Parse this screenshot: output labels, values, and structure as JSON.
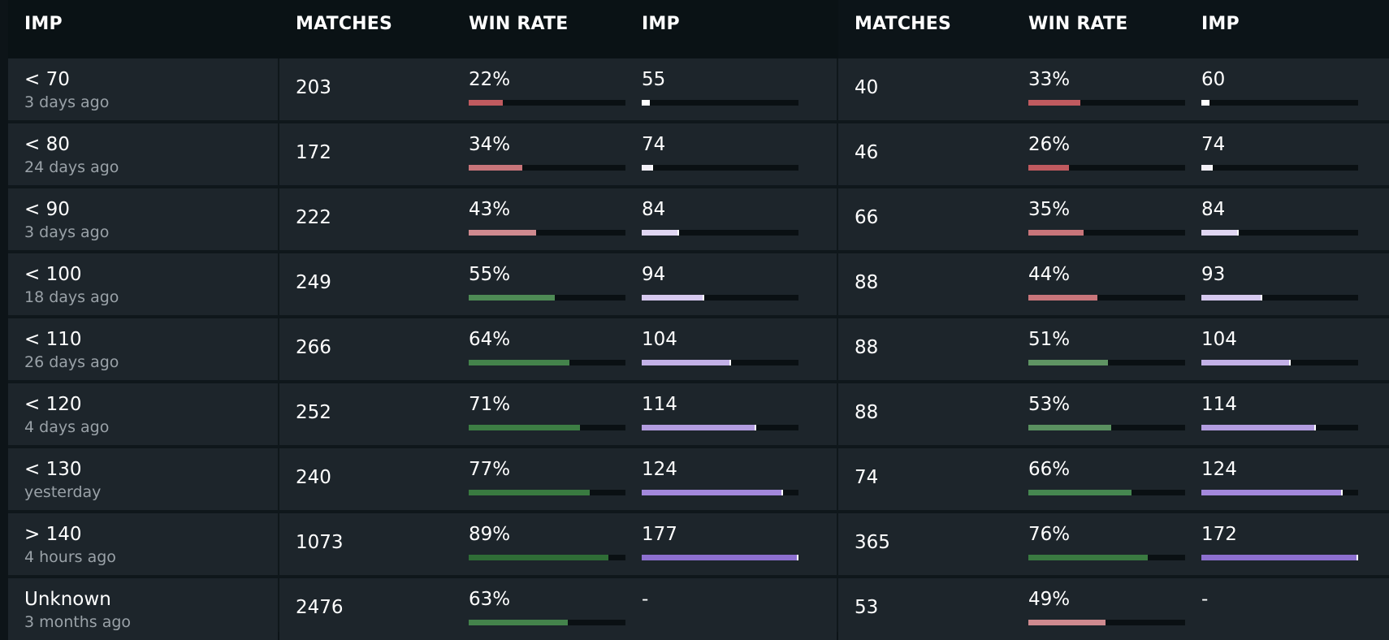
{
  "header": {
    "col1": "IMP",
    "col2": "MATCHES",
    "col3": "WIN RATE",
    "col4": "IMP",
    "col5": "MATCHES",
    "col6": "WIN RATE",
    "col7": "IMP"
  },
  "colors": {
    "win_low": "#c05a5f",
    "win_mid_low": "#c8757a",
    "win_mid": "#cf8a8f",
    "win_high": "#3f7d45",
    "win_high_alt": "#5a8c5d",
    "imp_lightest": "#e8e8f2",
    "imp_light": "#d9cdee",
    "imp_mid": "#c4b2e6",
    "imp_strong": "#9d7fd6",
    "imp_strongest": "#8a6bcf"
  },
  "rows": [
    {
      "label": "< 70",
      "sub": "3 days ago",
      "left": {
        "matches": "203",
        "win": "22%",
        "win_frac": 0.22,
        "win_color": "#c05a5f",
        "imp": "55",
        "imp_frac": 0.04,
        "imp_color": "#ffffff"
      },
      "right": {
        "matches": "40",
        "win": "33%",
        "win_frac": 0.33,
        "win_color": "#c05a5f",
        "imp": "60",
        "imp_frac": 0.04,
        "imp_color": "#ffffff"
      }
    },
    {
      "label": "< 80",
      "sub": "24 days ago",
      "left": {
        "matches": "172",
        "win": "34%",
        "win_frac": 0.34,
        "win_color": "#c8757a",
        "imp": "74",
        "imp_frac": 0.06,
        "imp_color": "#f2f0f7"
      },
      "right": {
        "matches": "46",
        "win": "26%",
        "win_frac": 0.26,
        "win_color": "#c05a5f",
        "imp": "74",
        "imp_frac": 0.06,
        "imp_color": "#f2f0f7"
      }
    },
    {
      "label": "< 90",
      "sub": "3 days ago",
      "left": {
        "matches": "222",
        "win": "43%",
        "win_frac": 0.43,
        "win_color": "#cf8a8f",
        "imp": "84",
        "imp_frac": 0.23,
        "imp_color": "#e0d6f2"
      },
      "right": {
        "matches": "66",
        "win": "35%",
        "win_frac": 0.35,
        "win_color": "#c8757a",
        "imp": "84",
        "imp_frac": 0.23,
        "imp_color": "#e0d6f2"
      }
    },
    {
      "label": "< 100",
      "sub": "18 days ago",
      "left": {
        "matches": "249",
        "win": "55%",
        "win_frac": 0.55,
        "win_color": "#4e8b55",
        "imp": "94",
        "imp_frac": 0.39,
        "imp_color": "#d6c9ef"
      },
      "right": {
        "matches": "88",
        "win": "44%",
        "win_frac": 0.44,
        "win_color": "#c8757a",
        "imp": "93",
        "imp_frac": 0.38,
        "imp_color": "#d6c9ef"
      }
    },
    {
      "label": "< 110",
      "sub": "26 days ago",
      "left": {
        "matches": "266",
        "win": "64%",
        "win_frac": 0.64,
        "win_color": "#44834b",
        "imp": "104",
        "imp_frac": 0.56,
        "imp_color": "#c3b1e7"
      },
      "right": {
        "matches": "88",
        "win": "51%",
        "win_frac": 0.51,
        "win_color": "#5f9463",
        "imp": "104",
        "imp_frac": 0.56,
        "imp_color": "#c3b1e7"
      }
    },
    {
      "label": "< 120",
      "sub": "4 days ago",
      "left": {
        "matches": "252",
        "win": "71%",
        "win_frac": 0.71,
        "win_color": "#3d7e44",
        "imp": "114",
        "imp_frac": 0.72,
        "imp_color": "#b39de0"
      },
      "right": {
        "matches": "88",
        "win": "53%",
        "win_frac": 0.53,
        "win_color": "#5a9160",
        "imp": "114",
        "imp_frac": 0.72,
        "imp_color": "#b39de0"
      }
    },
    {
      "label": "< 130",
      "sub": "yesterday",
      "left": {
        "matches": "240",
        "win": "77%",
        "win_frac": 0.77,
        "win_color": "#397a40",
        "imp": "124",
        "imp_frac": 0.89,
        "imp_color": "#a388dc"
      },
      "right": {
        "matches": "74",
        "win": "66%",
        "win_frac": 0.66,
        "win_color": "#468750",
        "imp": "124",
        "imp_frac": 0.89,
        "imp_color": "#a388dc"
      }
    },
    {
      "label": "> 140",
      "sub": "4 hours ago",
      "left": {
        "matches": "1073",
        "win": "89%",
        "win_frac": 0.89,
        "win_color": "#2f6d36",
        "imp": "177",
        "imp_frac": 0.99,
        "imp_color": "#8d70d0"
      },
      "right": {
        "matches": "365",
        "win": "76%",
        "win_frac": 0.76,
        "win_color": "#3a7a41",
        "imp": "172",
        "imp_frac": 0.99,
        "imp_color": "#8d70d0"
      }
    },
    {
      "label": "Unknown",
      "sub": "3 months ago",
      "left": {
        "matches": "2476",
        "win": "63%",
        "win_frac": 0.63,
        "win_color": "#44834b",
        "imp": "-",
        "imp_frac": 0,
        "imp_color": "#ffffff"
      },
      "right": {
        "matches": "53",
        "win": "49%",
        "win_frac": 0.49,
        "win_color": "#cf8a8f",
        "imp": "-",
        "imp_frac": 0,
        "imp_color": "#ffffff"
      }
    }
  ]
}
